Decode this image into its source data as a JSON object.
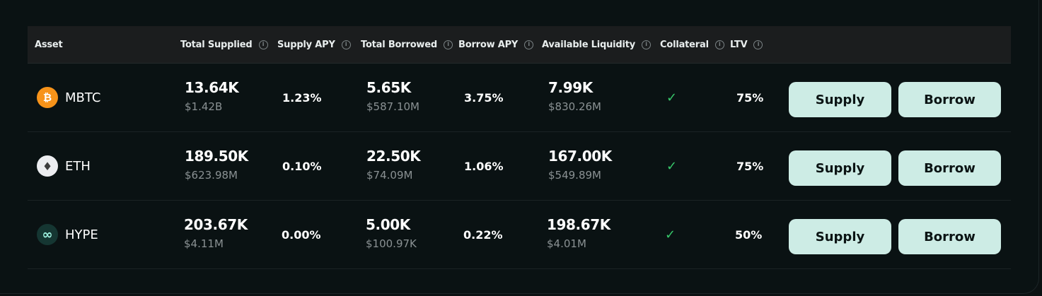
{
  "columns": {
    "asset": "Asset",
    "total_supplied": "Total Supplied",
    "supply_apy": "Supply APY",
    "total_borrowed": "Total Borrowed",
    "borrow_apy": "Borrow APY",
    "available_liquidity": "Available Liquidity",
    "collateral": "Collateral",
    "ltv": "LTV"
  },
  "info_glyph": "i",
  "rows": [
    {
      "asset": "MBTC",
      "icon": "bitcoin-icon",
      "icon_glyph": "₿",
      "icon_color": "#f7931a",
      "total_supplied": "13.64K",
      "total_supplied_usd": "$1.42B",
      "supply_apy": "1.23%",
      "total_borrowed": "5.65K",
      "total_borrowed_usd": "$587.10M",
      "borrow_apy": "3.75%",
      "available_liquidity": "7.99K",
      "available_liquidity_usd": "$830.26M",
      "collateral": "✓",
      "ltv": "75%",
      "supply_label": "Supply",
      "borrow_label": "Borrow"
    },
    {
      "asset": "ETH",
      "icon": "ethereum-icon",
      "icon_glyph": "♦",
      "icon_color": "#ecedf0",
      "total_supplied": "189.50K",
      "total_supplied_usd": "$623.98M",
      "supply_apy": "0.10%",
      "total_borrowed": "22.50K",
      "total_borrowed_usd": "$74.09M",
      "borrow_apy": "1.06%",
      "available_liquidity": "167.00K",
      "available_liquidity_usd": "$549.89M",
      "collateral": "✓",
      "ltv": "75%",
      "supply_label": "Supply",
      "borrow_label": "Borrow"
    },
    {
      "asset": "HYPE",
      "icon": "hype-icon",
      "icon_glyph": "∞",
      "icon_color": "#153632",
      "total_supplied": "203.67K",
      "total_supplied_usd": "$4.11M",
      "supply_apy": "0.00%",
      "total_borrowed": "5.00K",
      "total_borrowed_usd": "$100.97K",
      "borrow_apy": "0.22%",
      "available_liquidity": "198.67K",
      "available_liquidity_usd": "$4.01M",
      "collateral": "✓",
      "ltv": "50%",
      "supply_label": "Supply",
      "borrow_label": "Borrow"
    }
  ],
  "colors": {
    "background": "#0a1213",
    "header_bg": "#1b1d1e",
    "button_bg": "#cdece5",
    "check": "#37c76a",
    "muted_text": "#8a9193"
  }
}
